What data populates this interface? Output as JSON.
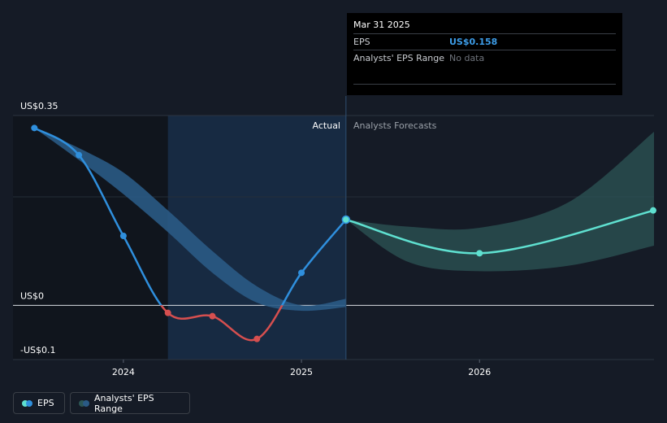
{
  "tooltip": {
    "date": "Mar 31 2025",
    "eps_label": "EPS",
    "eps_value": "US$0.158",
    "range_label": "Analysts' EPS Range",
    "range_value": "No data"
  },
  "regions": {
    "actual": "Actual",
    "forecast": "Analysts Forecasts"
  },
  "legend": {
    "eps": "EPS",
    "range": "Analysts' EPS Range"
  },
  "colors": {
    "background": "#151b26",
    "eps_actual": "#2f8fdd",
    "eps_negative": "#d64f4f",
    "eps_forecast": "#5fe0d0",
    "range_actual": "#2a5a85",
    "range_forecast": "#2c5655"
  },
  "chart_data": {
    "type": "line",
    "y_ticks": [
      {
        "value": 0.35,
        "label": "US$0.35"
      },
      {
        "value": 0,
        "label": "US$0"
      },
      {
        "value": -0.1,
        "label": "-US$0.1"
      }
    ],
    "x_ticks": [
      {
        "value": 2024.0,
        "label": "2024"
      },
      {
        "value": 2025.0,
        "label": "2025"
      },
      {
        "value": 2026.0,
        "label": "2026"
      }
    ],
    "xlim": [
      2023.38,
      2026.98
    ],
    "ylim": [
      -0.1,
      0.35
    ],
    "highlight_start": 2024.25,
    "actual_end": 2025.25,
    "series": [
      {
        "name": "EPS",
        "points": [
          [
            2023.5,
            0.327
          ],
          [
            2023.75,
            0.277
          ],
          [
            2024.0,
            0.128
          ],
          [
            2024.25,
            -0.014
          ],
          [
            2024.5,
            -0.02
          ],
          [
            2024.75,
            -0.062
          ],
          [
            2025.0,
            0.06
          ],
          [
            2025.25,
            0.158
          ]
        ]
      },
      {
        "name": "EPS forecast",
        "points": [
          [
            2025.25,
            0.158
          ],
          [
            2026.0,
            0.096
          ],
          [
            2026.98,
            0.175
          ]
        ]
      }
    ],
    "range_actual": {
      "x": [
        2023.5,
        2023.75,
        2024.0,
        2024.25,
        2024.5,
        2024.75,
        2025.0,
        2025.25
      ],
      "upper": [
        0.327,
        0.29,
        0.245,
        0.175,
        0.1,
        0.035,
        0.0,
        0.012
      ],
      "lower": [
        0.327,
        0.268,
        0.205,
        0.135,
        0.06,
        0.005,
        -0.01,
        -0.003
      ]
    },
    "range_forecast": {
      "x": [
        2025.25,
        2025.6,
        2026.0,
        2026.5,
        2026.98
      ],
      "upper": [
        0.158,
        0.145,
        0.143,
        0.19,
        0.32
      ],
      "lower": [
        0.158,
        0.08,
        0.063,
        0.073,
        0.11
      ]
    }
  }
}
